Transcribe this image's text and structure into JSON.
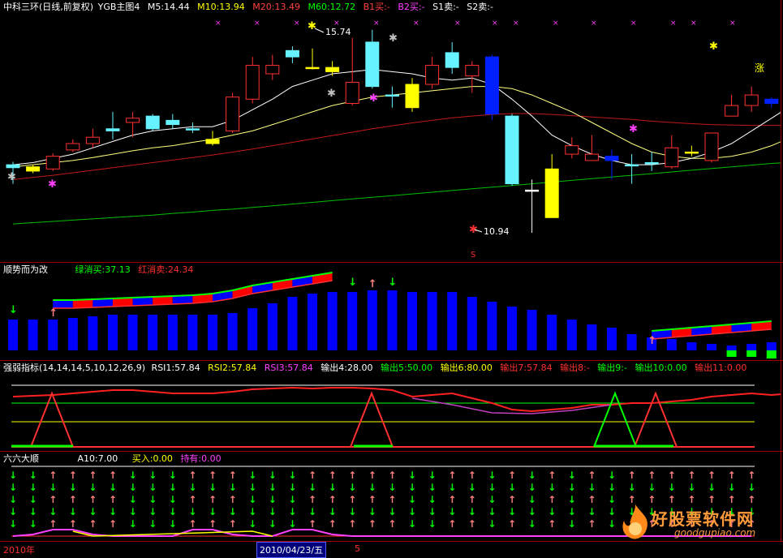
{
  "colors": {
    "white": "#ffffff",
    "yellow": "#ffff00",
    "red": "#ff3030",
    "green": "#00ff00",
    "magenta": "#ff40ff",
    "cyan": "#00ffff",
    "blue": "#0000ff",
    "gray": "#c0c0c0"
  },
  "main_pane": {
    "title": "中科三环(日线,前复权)",
    "indicator": "YGB主图4",
    "ma5": "M5:14.44",
    "ma10": "M10:13.94",
    "ma20": "M20:13.49",
    "ma60": "M60:12.72",
    "b1": "B1买:-",
    "b2": "B2买:-",
    "s1": "S1卖:-",
    "s2": "S2卖:-",
    "high_label": "15.74",
    "low_label": "10.94",
    "zhang_label": "涨",
    "s_marker": "S"
  },
  "pane2": {
    "title": "顺势而为改",
    "green_cancel_buy": "绿消买:37.13",
    "red_cancel_sell": "红消卖:24.34"
  },
  "pane3": {
    "title": "强弱指标(14,14,14,5,10,12,26,9)",
    "rsi1": "RSI1:57.84",
    "rsi2": "RSI2:57.84",
    "rsi3": "RSI3:57.84",
    "out4": "输出4:28.00",
    "out5": "输出5:50.00",
    "out6": "输出6:80.00",
    "out7": "输出7:57.84",
    "out8": "输出8:-",
    "out9": "输出9:-",
    "out10": "输出10:0.00",
    "out11": "输出11:0.00"
  },
  "pane4": {
    "title": "六六大顺",
    "a10": "A10:7.00",
    "buy_in": "买入:0.00",
    "hold": "持有:0.00"
  },
  "date_axis": {
    "year": "2010年",
    "cursor_date": "2010/04/23/五",
    "month": "5"
  },
  "watermark": {
    "brand": "好股票软件网",
    "url": "goodgupiao.com"
  },
  "chart_data": {
    "type": "candlestick",
    "candles": [
      {
        "o": 12.55,
        "c": 12.48,
        "h": 12.62,
        "l": 12.1
      },
      {
        "o": 12.4,
        "c": 12.5,
        "h": 12.55,
        "l": 12.35
      },
      {
        "o": 12.45,
        "c": 12.75,
        "h": 12.82,
        "l": 12.4
      },
      {
        "o": 12.9,
        "c": 13.05,
        "h": 13.15,
        "l": 12.85
      },
      {
        "o": 13.05,
        "c": 13.2,
        "h": 13.4,
        "l": 12.95
      },
      {
        "o": 13.4,
        "c": 13.35,
        "h": 13.8,
        "l": 13.15
      },
      {
        "o": 13.55,
        "c": 13.65,
        "h": 13.8,
        "l": 13.2
      },
      {
        "o": 13.7,
        "c": 13.4,
        "h": 13.75,
        "l": 13.35
      },
      {
        "o": 13.6,
        "c": 13.5,
        "h": 13.75,
        "l": 13.4
      },
      {
        "o": 13.4,
        "c": 13.4,
        "h": 13.55,
        "l": 13.3
      },
      {
        "o": 13.05,
        "c": 13.15,
        "h": 13.35,
        "l": 13.0
      },
      {
        "o": 13.35,
        "c": 14.15,
        "h": 14.25,
        "l": 13.3
      },
      {
        "o": 14.1,
        "c": 14.9,
        "h": 15.1,
        "l": 14.0
      },
      {
        "o": 14.7,
        "c": 14.9,
        "h": 15.15,
        "l": 14.55
      },
      {
        "o": 15.1,
        "c": 15.25,
        "h": 15.35,
        "l": 14.95
      },
      {
        "o": 14.85,
        "c": 14.85,
        "h": 15.3,
        "l": 14.8
      },
      {
        "o": 14.75,
        "c": 14.85,
        "h": 15.0,
        "l": 14.65
      },
      {
        "o": 14.0,
        "c": 14.5,
        "h": 15.55,
        "l": 13.95
      },
      {
        "o": 15.45,
        "c": 14.4,
        "h": 15.74,
        "l": 14.35
      },
      {
        "o": 14.2,
        "c": 14.2,
        "h": 14.4,
        "l": 13.9
      },
      {
        "o": 13.9,
        "c": 14.45,
        "h": 14.6,
        "l": 13.8
      },
      {
        "o": 14.45,
        "c": 14.9,
        "h": 15.1,
        "l": 14.35
      },
      {
        "o": 15.2,
        "c": 14.85,
        "h": 15.45,
        "l": 14.7
      },
      {
        "o": 14.65,
        "c": 14.9,
        "h": 15.0,
        "l": 14.25
      },
      {
        "o": 15.1,
        "c": 13.75,
        "h": 15.15,
        "l": 13.6
      },
      {
        "o": 13.7,
        "c": 12.1,
        "h": 13.75,
        "l": 12.05
      },
      {
        "o": 11.95,
        "c": 11.95,
        "h": 12.2,
        "l": 10.94
      },
      {
        "o": 11.3,
        "c": 12.45,
        "h": 12.8,
        "l": 11.3
      },
      {
        "o": 12.8,
        "c": 13.0,
        "h": 13.2,
        "l": 12.7
      },
      {
        "o": 12.65,
        "c": 12.8,
        "h": 13.25,
        "l": 12.65
      },
      {
        "o": 12.75,
        "c": 12.65,
        "h": 12.9,
        "l": 12.2
      },
      {
        "o": 12.55,
        "c": 12.55,
        "h": 12.8,
        "l": 12.1
      },
      {
        "o": 12.6,
        "c": 12.6,
        "h": 12.85,
        "l": 12.4
      },
      {
        "o": 12.5,
        "c": 12.95,
        "h": 13.25,
        "l": 12.45
      },
      {
        "o": 12.85,
        "c": 12.85,
        "h": 13.0,
        "l": 12.75
      },
      {
        "o": 12.65,
        "c": 13.3,
        "h": 13.3,
        "l": 12.6
      },
      {
        "o": 13.7,
        "c": 13.95,
        "h": 14.2,
        "l": 13.7
      },
      {
        "o": 13.95,
        "c": 14.2,
        "h": 14.4,
        "l": 13.8
      },
      {
        "o": 14.1,
        "c": 14.0,
        "h": 14.15,
        "l": 13.9
      },
      {
        "o": 13.85,
        "c": 14.75,
        "h": 14.85,
        "l": 13.85
      },
      {
        "o": 14.4,
        "c": 14.6,
        "h": 15.2,
        "l": 14.25
      },
      {
        "o": 15.05,
        "c": 14.8,
        "h": 15.15,
        "l": 14.65
      },
      {
        "o": 14.55,
        "c": 14.6,
        "h": 14.9,
        "l": 14.4
      },
      {
        "o": 14.25,
        "c": 14.6,
        "h": 14.65,
        "l": 14.25
      }
    ],
    "candle_colors": [
      "cyan",
      "yellow",
      "red",
      "red",
      "red",
      "cyan",
      "red",
      "cyan",
      "cyan",
      "cyan",
      "yellow",
      "red",
      "red",
      "red",
      "cyan",
      "yellow",
      "yellow",
      "red",
      "cyan",
      "cyan",
      "yellow",
      "red",
      "cyan",
      "red",
      "blue",
      "cyan",
      "white",
      "yellow",
      "red",
      "red",
      "blue",
      "cyan",
      "cyan",
      "red",
      "yellow",
      "red",
      "red",
      "red",
      "blue",
      "red",
      "yellow",
      "cyan",
      "cyan",
      "red"
    ],
    "ma5": [
      12.55,
      12.6,
      12.7,
      12.8,
      12.95,
      13.1,
      13.25,
      13.35,
      13.4,
      13.45,
      13.45,
      13.6,
      13.85,
      14.1,
      14.4,
      14.55,
      14.7,
      14.75,
      14.8,
      14.75,
      14.7,
      14.6,
      14.55,
      14.6,
      14.45,
      14.1,
      13.7,
      13.25,
      13.0,
      12.8,
      12.65,
      12.55,
      12.55,
      12.6,
      12.7,
      12.85,
      13.05,
      13.35,
      13.65,
      13.95,
      14.15,
      14.35,
      14.4,
      14.44
    ],
    "ma10": [
      12.5,
      12.55,
      12.6,
      12.65,
      12.72,
      12.8,
      12.88,
      12.95,
      13.0,
      13.08,
      13.15,
      13.25,
      13.35,
      13.5,
      13.65,
      13.8,
      13.95,
      14.05,
      14.15,
      14.2,
      14.25,
      14.3,
      14.35,
      14.4,
      14.4,
      14.35,
      14.2,
      14.0,
      13.8,
      13.55,
      13.3,
      13.05,
      12.85,
      12.75,
      12.7,
      12.7,
      12.75,
      12.85,
      13.0,
      13.2,
      13.4,
      13.6,
      13.8,
      13.94
    ],
    "ma20": [
      12.2,
      12.25,
      12.3,
      12.36,
      12.42,
      12.48,
      12.54,
      12.6,
      12.66,
      12.72,
      12.78,
      12.85,
      12.92,
      13.0,
      13.08,
      13.16,
      13.24,
      13.32,
      13.4,
      13.47,
      13.54,
      13.6,
      13.66,
      13.7,
      13.74,
      13.76,
      13.76,
      13.74,
      13.71,
      13.68,
      13.65,
      13.62,
      13.58,
      13.55,
      13.52,
      13.5,
      13.49,
      13.48,
      13.48,
      13.48,
      13.49,
      13.49,
      13.49,
      13.49
    ],
    "ma60": [
      11.15,
      11.18,
      11.21,
      11.24,
      11.27,
      11.3,
      11.33,
      11.36,
      11.4,
      11.43,
      11.47,
      11.5,
      11.54,
      11.58,
      11.62,
      11.66,
      11.7,
      11.74,
      11.78,
      11.82,
      11.86,
      11.9,
      11.94,
      11.98,
      12.02,
      12.06,
      12.1,
      12.14,
      12.18,
      12.22,
      12.26,
      12.3,
      12.34,
      12.38,
      12.42,
      12.46,
      12.5,
      12.54,
      12.58,
      12.61,
      12.64,
      12.67,
      12.7,
      12.72
    ],
    "ylim": [
      10.5,
      16.1
    ]
  }
}
